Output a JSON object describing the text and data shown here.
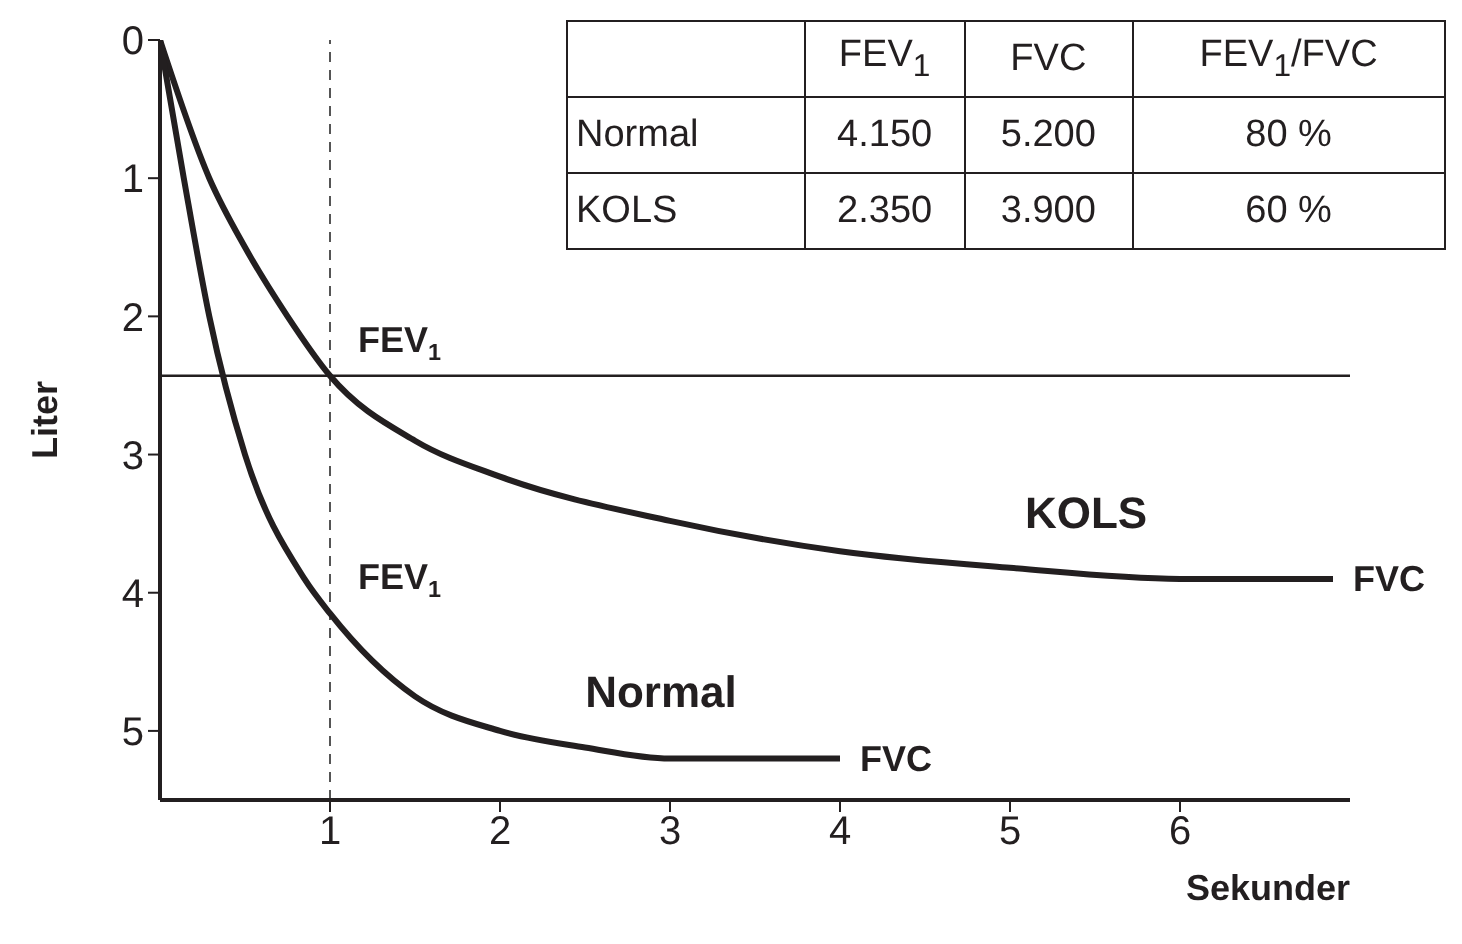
{
  "chart_data": {
    "type": "line",
    "xlabel": "Sekunder",
    "ylabel": "Liter",
    "xlim": [
      0,
      7
    ],
    "xticks": [
      1,
      2,
      3,
      4,
      5,
      6
    ],
    "ylim": [
      5.5,
      0
    ],
    "yticks": [
      0,
      1,
      2,
      3,
      4,
      5
    ],
    "marker": "none",
    "line_style": "solid",
    "series": [
      {
        "name": "KOLS",
        "color": "#231f20",
        "x": [
          0,
          0.29,
          0.5,
          0.75,
          1,
          1.5,
          2,
          3,
          4,
          5,
          6,
          6.9
        ],
        "values": [
          0,
          1,
          1.5,
          2,
          2.43,
          2.9,
          3.16,
          3.48,
          3.7,
          3.82,
          3.9,
          3.9
        ]
      },
      {
        "name": "Normal",
        "color": "#231f20",
        "x": [
          0,
          0.14,
          0.29,
          0.5,
          0.85,
          1,
          1.5,
          2,
          2.5,
          3,
          4
        ],
        "values": [
          0,
          1,
          2,
          3,
          3.9,
          4.15,
          4.75,
          5.0,
          5.12,
          5.2,
          5.2
        ]
      }
    ],
    "ref_lines": [
      {
        "axis": "y",
        "value": 2.43,
        "color": "#231f20",
        "line_style": "solid"
      },
      {
        "axis": "x",
        "value": 1,
        "color": "#555555",
        "line_style": "dashed"
      }
    ],
    "annotations": [
      {
        "text": "FEV$_{1}$",
        "x": 1,
        "y": 2.43
      },
      {
        "text": "FEV$_{1}$",
        "x": 1,
        "y": 4.15
      },
      {
        "text": "FVC",
        "x": 6.9,
        "y": 3.9
      },
      {
        "text": "FVC",
        "x": 4,
        "y": 5.2
      },
      "FEV$_{1}$",
      "FVC",
      "FEV$_{1}$/FVC",
      "Normal",
      "4.150",
      "5.200",
      "80 %",
      "KOLS",
      "2.350",
      "3.900",
      "60 %"
    ]
  }
}
